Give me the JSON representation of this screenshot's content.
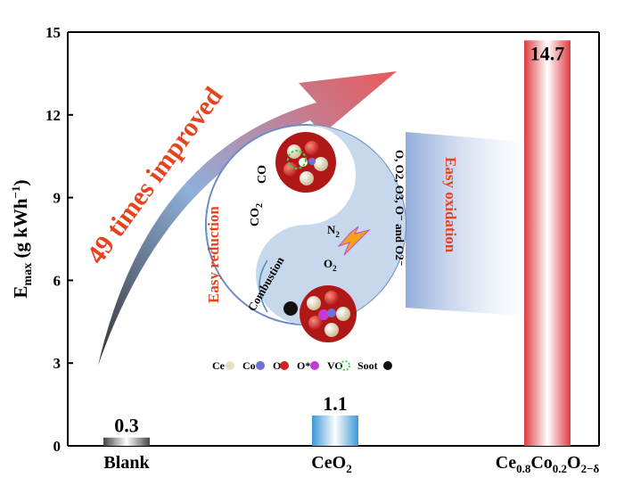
{
  "chart_data": {
    "type": "bar",
    "title": "",
    "xlabel": "",
    "ylabel": "E",
    "ylabel_sub": "max",
    "ylabel_units": " (g kWh",
    "ylabel_sup": "−1",
    "ylabel_close": ")",
    "ylim": [
      0,
      15
    ],
    "yticks": [
      0,
      3,
      6,
      9,
      12,
      15
    ],
    "grid": false,
    "categories": [
      "Blank",
      "CeO2",
      "Ce0.8Co0.2O2-δ"
    ],
    "category_labels": {
      "blank": "Blank",
      "ceo2_main": "CeO",
      "ceo2_sub": "2",
      "cc_ce": "Ce",
      "cc_s1": "0.8",
      "cc_co": "Co",
      "cc_s2": "0.2",
      "cc_o": "O",
      "cc_s3": "2−δ"
    },
    "values": [
      0.3,
      1.1,
      14.7
    ],
    "value_labels": [
      "0.3",
      "1.1",
      "14.7"
    ],
    "colors": {
      "blank": "#555555",
      "ceo2": "#5aa9dc",
      "ceco": "#e0474c",
      "arrow_start": "#3a3a3a",
      "arrow_mid": "#7ba6d8",
      "arrow_end": "#e8585b",
      "annotation": "#e8431f"
    }
  },
  "annotation": {
    "improvement": "49 times improved",
    "easy_reduction": "Easy reduction",
    "easy_oxidation": "Easy oxidation",
    "combustion": "Combustion",
    "co2": "CO",
    "co2_sub": "2",
    "co": "CO",
    "n2": "N",
    "n2_sub": "2",
    "o2": "O",
    "o2_sub": "2",
    "oxygen_species": "O, O2, O3, O⁻ and O2⁻"
  },
  "legend": {
    "items": [
      {
        "label": "Ce",
        "color": "#e9dfc0"
      },
      {
        "label": "Co",
        "color": "#6f6fd8"
      },
      {
        "label": "O",
        "color": "#d62020"
      },
      {
        "label": "O*",
        "color": "#c43bd1"
      },
      {
        "label": "VO",
        "color": "#3fcf4a"
      },
      {
        "label": "Soot",
        "color": "#111111"
      }
    ]
  }
}
